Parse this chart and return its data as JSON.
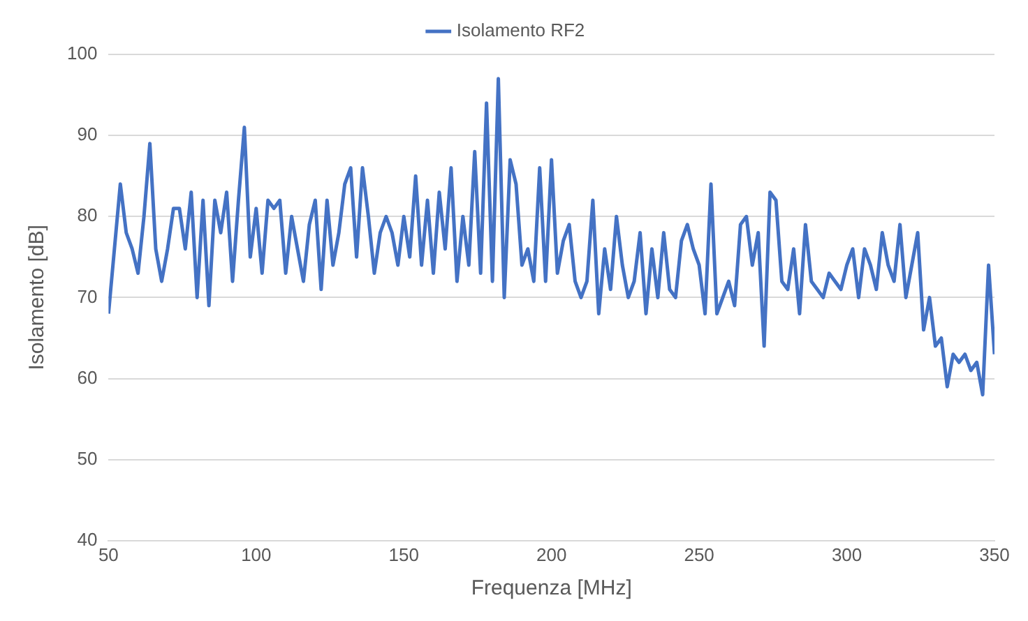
{
  "chart_data": {
    "type": "line",
    "xlabel": "Frequenza [MHz]",
    "ylabel": "Isolamento [dB]",
    "x": [
      50,
      52,
      54,
      56,
      58,
      60,
      62,
      64,
      66,
      68,
      70,
      72,
      74,
      76,
      78,
      80,
      82,
      84,
      86,
      88,
      90,
      92,
      94,
      96,
      98,
      100,
      102,
      104,
      106,
      108,
      110,
      112,
      114,
      116,
      118,
      120,
      122,
      124,
      126,
      128,
      130,
      132,
      134,
      136,
      138,
      140,
      142,
      144,
      146,
      148,
      150,
      152,
      154,
      156,
      158,
      160,
      162,
      164,
      166,
      168,
      170,
      172,
      174,
      176,
      178,
      180,
      182,
      184,
      186,
      188,
      190,
      192,
      194,
      196,
      198,
      200,
      202,
      204,
      206,
      208,
      210,
      212,
      214,
      216,
      218,
      220,
      222,
      224,
      226,
      228,
      230,
      232,
      234,
      236,
      238,
      240,
      242,
      244,
      246,
      248,
      250,
      252,
      254,
      256,
      258,
      260,
      262,
      264,
      266,
      268,
      270,
      272,
      274,
      276,
      278,
      280,
      282,
      284,
      286,
      288,
      290,
      292,
      294,
      296,
      298,
      300,
      302,
      304,
      306,
      308,
      310,
      312,
      314,
      316,
      318,
      320,
      322,
      324,
      326,
      328,
      330,
      332,
      334,
      336,
      338,
      340,
      342,
      344,
      346,
      348,
      350
    ],
    "series": [
      {
        "name": "Isolamento RF2",
        "color": "#4472c4",
        "values": [
          68,
          76,
          84,
          78,
          76,
          73,
          80,
          89,
          76,
          72,
          76,
          81,
          81,
          76,
          83,
          70,
          82,
          69,
          82,
          78,
          83,
          72,
          82,
          91,
          75,
          81,
          73,
          82,
          81,
          82,
          73,
          80,
          76,
          72,
          79,
          82,
          71,
          82,
          74,
          78,
          84,
          86,
          75,
          86,
          80,
          73,
          78,
          80,
          78,
          74,
          80,
          75,
          85,
          74,
          82,
          73,
          83,
          76,
          86,
          72,
          80,
          74,
          88,
          73,
          94,
          72,
          97,
          70,
          87,
          84,
          74,
          76,
          72,
          86,
          72,
          87,
          73,
          77,
          79,
          72,
          70,
          72,
          82,
          68,
          76,
          71,
          80,
          74,
          70,
          72,
          78,
          68,
          76,
          70,
          78,
          71,
          70,
          77,
          79,
          76,
          74,
          68,
          84,
          68,
          70,
          72,
          69,
          79,
          80,
          74,
          78,
          64,
          83,
          82,
          72,
          71,
          76,
          68,
          79,
          72,
          71,
          70,
          73,
          72,
          71,
          74,
          76,
          70,
          76,
          74,
          71,
          78,
          74,
          72,
          79,
          70,
          74,
          78,
          66,
          70,
          64,
          65,
          59,
          63,
          62,
          63,
          61,
          62,
          58,
          74,
          63
        ]
      }
    ],
    "xlim": [
      50,
      350
    ],
    "xticks": [
      50,
      100,
      150,
      200,
      250,
      300,
      350
    ],
    "ylim": [
      40,
      100
    ],
    "yticks": [
      40,
      50,
      60,
      70,
      80,
      90,
      100
    ],
    "grid": "y",
    "legend": "top",
    "marker": "none",
    "line_style": "solid"
  }
}
